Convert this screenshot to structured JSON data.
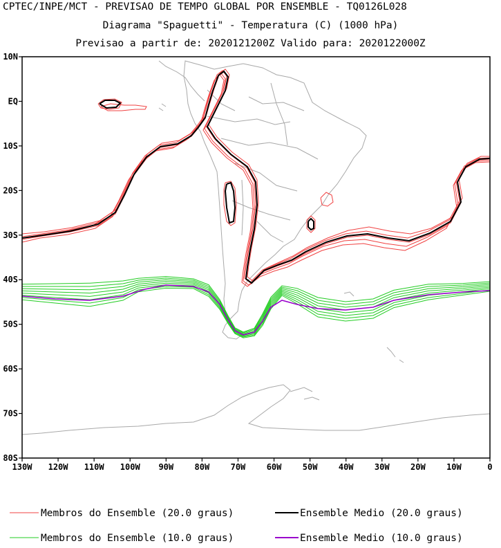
{
  "header": {
    "line1": "CPTEC/INPE/MCT - PREVISAO DE TEMPO GLOBAL POR ENSEMBLE - TQ0126L028",
    "line2": "Diagrama \"Spaguetti\" - Temperatura (C) (1000 hPa)",
    "line3": "Previsao a partir de: 2020121200Z  Valido para: 2020122000Z"
  },
  "map": {
    "lon_range": [
      -130,
      0
    ],
    "lat_range": [
      -80,
      10
    ],
    "lat_ticks": [
      {
        "value": 10,
        "label": "10N"
      },
      {
        "value": 0,
        "label": "EQ"
      },
      {
        "value": -10,
        "label": "10S"
      },
      {
        "value": -20,
        "label": "20S"
      },
      {
        "value": -30,
        "label": "30S"
      },
      {
        "value": -40,
        "label": "40S"
      },
      {
        "value": -50,
        "label": "50S"
      },
      {
        "value": -60,
        "label": "60S"
      },
      {
        "value": -70,
        "label": "70S"
      },
      {
        "value": -80,
        "label": "80S"
      }
    ],
    "lon_ticks": [
      {
        "value": -130,
        "label": "130W"
      },
      {
        "value": -120,
        "label": "120W"
      },
      {
        "value": -110,
        "label": "110W"
      },
      {
        "value": -100,
        "label": "100W"
      },
      {
        "value": -90,
        "label": "90W"
      },
      {
        "value": -80,
        "label": "80W"
      },
      {
        "value": -70,
        "label": "70W"
      },
      {
        "value": -60,
        "label": "60W"
      },
      {
        "value": -50,
        "label": "50W"
      },
      {
        "value": -40,
        "label": "40W"
      },
      {
        "value": -30,
        "label": "30W"
      },
      {
        "value": -20,
        "label": "20W"
      },
      {
        "value": -10,
        "label": "10W"
      },
      {
        "value": 0,
        "label": "0"
      }
    ],
    "colors": {
      "members_20": "#f04040",
      "mean_20": "#000000",
      "members_10": "#22cc22",
      "mean_10": "#9900cc",
      "coast": "#a8a8a8"
    }
  },
  "legend": {
    "items": [
      {
        "label": "Membros do Ensemble (20.0 graus)",
        "color": "#f04040"
      },
      {
        "label": "Ensemble Medio (20.0 graus)",
        "color": "#000000"
      },
      {
        "label": "Membros do Ensemble (10.0 graus)",
        "color": "#22cc22"
      },
      {
        "label": "Ensemble Medio (10.0 graus)",
        "color": "#9900cc"
      }
    ]
  }
}
